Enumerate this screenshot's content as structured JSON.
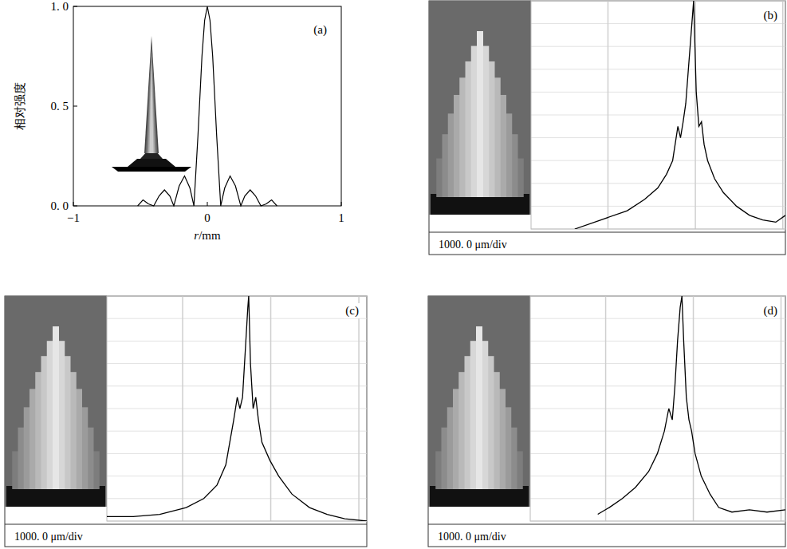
{
  "chart_data": [
    {
      "type": "line",
      "title": "(a)",
      "xlabel": "r/mm",
      "ylabel": "相对强度",
      "color": "#000000",
      "x": [
        -0.52,
        -0.48,
        -0.44,
        -0.4,
        -0.36,
        -0.32,
        -0.28,
        -0.25,
        -0.21,
        -0.17,
        -0.13,
        -0.1,
        -0.07,
        -0.04,
        -0.02,
        0,
        0.02,
        0.04,
        0.07,
        0.1,
        0.13,
        0.17,
        0.21,
        0.25,
        0.28,
        0.32,
        0.36,
        0.4,
        0.44,
        0.48,
        0.52
      ],
      "values": [
        0,
        0.03,
        0.01,
        0,
        0.05,
        0.08,
        0.05,
        0,
        0.1,
        0.15,
        0.09,
        0,
        0.35,
        0.75,
        0.93,
        1,
        0.93,
        0.75,
        0.35,
        0,
        0.09,
        0.15,
        0.1,
        0,
        0.05,
        0.08,
        0.05,
        0,
        0.01,
        0.03,
        0
      ],
      "xlim": [
        -1,
        1
      ],
      "xticks": [
        {
          "value": -1,
          "label": "−1"
        },
        0,
        1
      ],
      "ylim": [
        0,
        1
      ],
      "yticks": [
        {
          "value": 0,
          "label": "0. 0"
        },
        {
          "value": 0.5,
          "label": "0. 5"
        },
        {
          "value": 1,
          "label": "1. 0"
        }
      ],
      "grid": false
    },
    {
      "type": "line",
      "title": "(b)",
      "annotation": "1000. 0 μm/div",
      "color": "#000000",
      "x": [
        500,
        800,
        1100,
        1300,
        1450,
        1550,
        1620,
        1680,
        1710,
        1740,
        1770,
        1800,
        1830,
        1860,
        1890,
        1920,
        1950,
        1980,
        2020,
        2100,
        2200,
        2350,
        2500,
        2650,
        2800,
        2910
      ],
      "values": [
        0,
        0.04,
        0.08,
        0.13,
        0.18,
        0.24,
        0.3,
        0.45,
        0.4,
        0.47,
        0.55,
        0.7,
        0.85,
        1.0,
        0.6,
        0.45,
        0.47,
        0.37,
        0.3,
        0.22,
        0.16,
        0.1,
        0.06,
        0.04,
        0.03,
        0.06
      ],
      "xlim": [
        0,
        2910
      ],
      "xticks": [
        880,
        1880,
        2880
      ],
      "ylim": [
        0,
        1
      ],
      "yticks": [
        0,
        0.1,
        0.2,
        0.3,
        0.4,
        0.5,
        0.6,
        0.7,
        0.8,
        0.9,
        1
      ],
      "grid": true,
      "tick_labels": false
    },
    {
      "type": "line",
      "title": "(c)",
      "annotation": "1000. 0 μm/div",
      "color": "#000000",
      "x": [
        0,
        300,
        600,
        900,
        1100,
        1250,
        1350,
        1440,
        1480,
        1510,
        1540,
        1570,
        1600,
        1610,
        1630,
        1660,
        1690,
        1720,
        1760,
        1850,
        1950,
        2100,
        2300,
        2500,
        2700,
        2950
      ],
      "values": [
        0.02,
        0.02,
        0.03,
        0.06,
        0.1,
        0.16,
        0.25,
        0.45,
        0.55,
        0.5,
        0.55,
        0.75,
        0.95,
        1.0,
        0.7,
        0.5,
        0.55,
        0.45,
        0.35,
        0.27,
        0.2,
        0.12,
        0.06,
        0.03,
        0.01,
        0
      ],
      "xlim": [
        0,
        2950
      ],
      "xticks": [
        860,
        1860,
        2860
      ],
      "ylim": [
        0,
        1
      ],
      "yticks": [
        0,
        0.1,
        0.2,
        0.3,
        0.4,
        0.5,
        0.6,
        0.7,
        0.8,
        0.9,
        1
      ],
      "grid": true,
      "tick_labels": false
    },
    {
      "type": "line",
      "title": "(d)",
      "annotation": "1000. 0 μm/div",
      "color": "#000000",
      "x": [
        770,
        900,
        1050,
        1200,
        1350,
        1450,
        1530,
        1580,
        1620,
        1650,
        1680,
        1710,
        1730,
        1750,
        1780,
        1810,
        1840,
        1880,
        1950,
        2050,
        2150,
        2300,
        2500,
        2700,
        2910
      ],
      "values": [
        0.03,
        0.06,
        0.1,
        0.15,
        0.22,
        0.3,
        0.4,
        0.5,
        0.45,
        0.6,
        0.8,
        0.95,
        1.0,
        0.8,
        0.55,
        0.45,
        0.4,
        0.3,
        0.2,
        0.12,
        0.06,
        0.04,
        0.05,
        0.04,
        0.05
      ],
      "xlim": [
        0,
        2910
      ],
      "xticks": [
        860,
        1860,
        2860
      ],
      "ylim": [
        0,
        1
      ],
      "yticks": [
        0,
        0.1,
        0.2,
        0.3,
        0.4,
        0.5,
        0.6,
        0.7,
        0.8,
        0.9,
        1
      ],
      "grid": true,
      "tick_labels": false
    }
  ]
}
